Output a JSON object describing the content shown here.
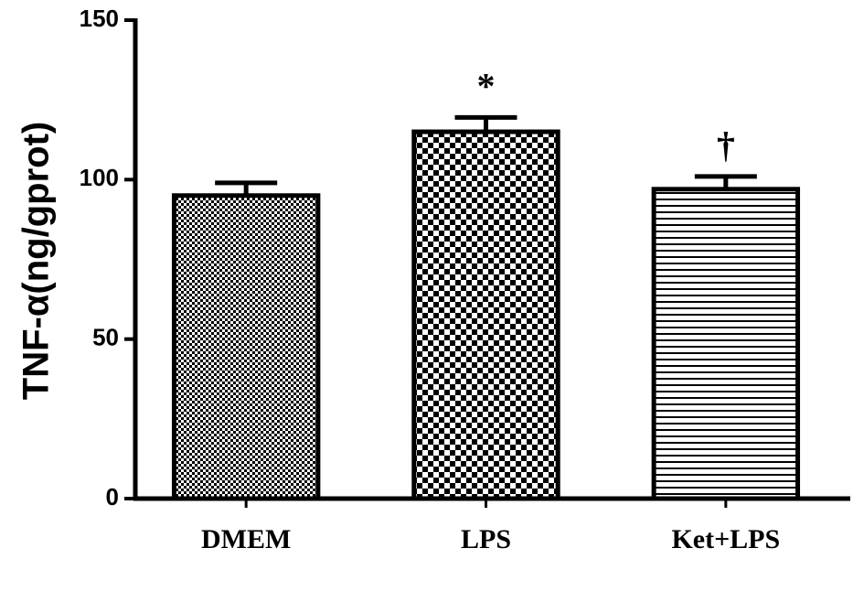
{
  "chart_data": {
    "type": "bar",
    "y_label": "TNF-α(ng/gprot)",
    "categories": [
      "DMEM",
      "LPS",
      "Ket+LPS"
    ],
    "values": [
      95,
      115,
      97
    ],
    "errors": [
      4,
      4.5,
      4
    ],
    "annotations": [
      null,
      "*",
      "†"
    ],
    "patterns": [
      "fine-check",
      "check",
      "hlines"
    ],
    "color": "#000000",
    "ylim": [
      0,
      150
    ],
    "yticks": [
      0,
      50,
      100,
      150
    ],
    "grid": false
  }
}
